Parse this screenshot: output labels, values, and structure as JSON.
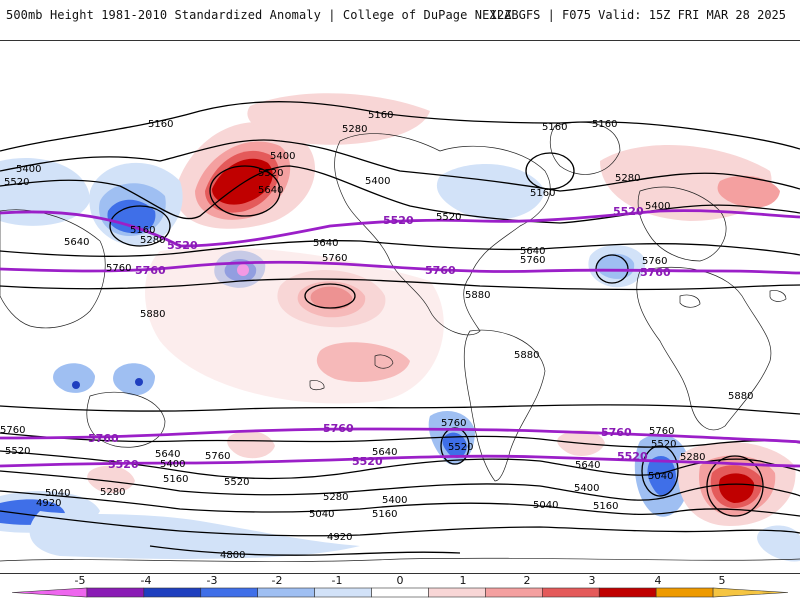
{
  "header": {
    "left_title": "500mb Height 1981-2010 Standardized Anomaly | College of DuPage NEXLAB",
    "right_title": "12Z GFS | F075 Valid: 15Z FRI MAR 28 2025"
  },
  "contour_labels": {
    "c4800": "4800",
    "c4920": "4920",
    "c5040": "5040",
    "c5160": "5160",
    "c5280": "5280",
    "c5400": "5400",
    "c5520": "5520",
    "c5640": "5640",
    "c5760": "5760",
    "c5880": "5880"
  },
  "colorbar": {
    "ticks": [
      "-5",
      "-4",
      "-3",
      "-2",
      "-1",
      "0",
      "1",
      "2",
      "3",
      "4",
      "5"
    ],
    "colors": [
      "#ee66ee",
      "#8a1bb5",
      "#1f3fbf",
      "#3f6fe8",
      "#9fbff2",
      "#d2e2f8",
      "#ffffff",
      "#f8d6d6",
      "#f4a0a0",
      "#e45a5a",
      "#c00000",
      "#ee9a00",
      "#f5c542"
    ]
  },
  "colors": {
    "contour": "#000000",
    "highlight_contour": "#9b1fc8",
    "land_outline": "#222222"
  }
}
